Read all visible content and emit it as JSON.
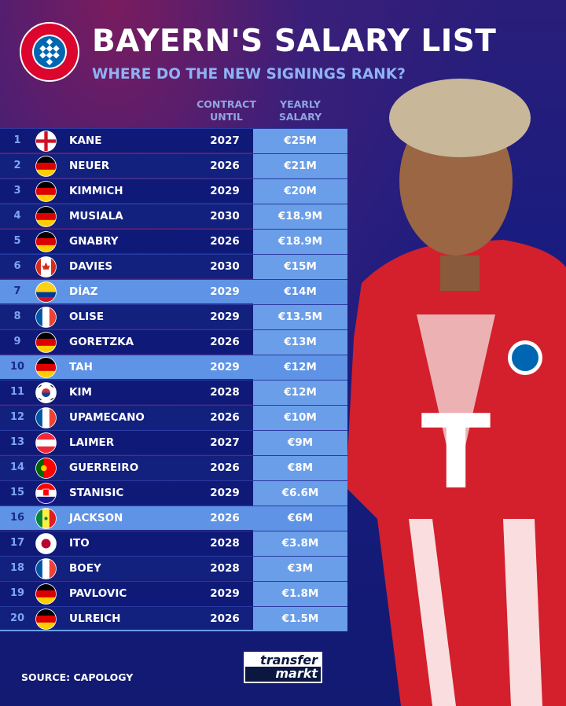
{
  "header": {
    "title": "BAYERN'S SALARY LIST",
    "subtitle": "WHERE DO THE NEW SIGNINGS RANK?",
    "logo_text": "FC BAYERN MÜNCHEN"
  },
  "columns": {
    "contract": "CONTRACT UNTIL",
    "salary": "YEARLY SALARY"
  },
  "colors": {
    "highlight": "#5f93e6",
    "salary_col": "#6a9ee8",
    "row_dark": "#0f1a78"
  },
  "rows": [
    {
      "rank": "1",
      "flag": "england",
      "name": "KANE",
      "contract": "2027",
      "salary": "€25M",
      "highlight": false
    },
    {
      "rank": "2",
      "flag": "germany",
      "name": "NEUER",
      "contract": "2026",
      "salary": "€21M",
      "highlight": false
    },
    {
      "rank": "3",
      "flag": "germany",
      "name": "KIMMICH",
      "contract": "2029",
      "salary": "€20M",
      "highlight": false
    },
    {
      "rank": "4",
      "flag": "germany",
      "name": "MUSIALA",
      "contract": "2030",
      "salary": "€18.9M",
      "highlight": false
    },
    {
      "rank": "5",
      "flag": "germany",
      "name": "GNABRY",
      "contract": "2026",
      "salary": "€18.9M",
      "highlight": false
    },
    {
      "rank": "6",
      "flag": "canada",
      "name": "DAVIES",
      "contract": "2030",
      "salary": "€15M",
      "highlight": false
    },
    {
      "rank": "7",
      "flag": "colombia",
      "name": "DÍAZ",
      "contract": "2029",
      "salary": "€14M",
      "highlight": true
    },
    {
      "rank": "8",
      "flag": "france",
      "name": "OLISE",
      "contract": "2029",
      "salary": "€13.5M",
      "highlight": false
    },
    {
      "rank": "9",
      "flag": "germany",
      "name": "GORETZKA",
      "contract": "2026",
      "salary": "€13M",
      "highlight": false
    },
    {
      "rank": "10",
      "flag": "germany",
      "name": "TAH",
      "contract": "2029",
      "salary": "€12M",
      "highlight": true
    },
    {
      "rank": "11",
      "flag": "south-korea",
      "name": "KIM",
      "contract": "2028",
      "salary": "€12M",
      "highlight": false
    },
    {
      "rank": "12",
      "flag": "france",
      "name": "UPAMECANO",
      "contract": "2026",
      "salary": "€10M",
      "highlight": false
    },
    {
      "rank": "13",
      "flag": "austria",
      "name": "LAIMER",
      "contract": "2027",
      "salary": "€9M",
      "highlight": false
    },
    {
      "rank": "14",
      "flag": "portugal",
      "name": "GUERREIRO",
      "contract": "2026",
      "salary": "€8M",
      "highlight": false
    },
    {
      "rank": "15",
      "flag": "croatia",
      "name": "STANISIC",
      "contract": "2029",
      "salary": "€6.6M",
      "highlight": false
    },
    {
      "rank": "16",
      "flag": "senegal",
      "name": "JACKSON",
      "contract": "2026",
      "salary": "€6M",
      "highlight": true
    },
    {
      "rank": "17",
      "flag": "japan",
      "name": "ITO",
      "contract": "2028",
      "salary": "€3.8M",
      "highlight": false
    },
    {
      "rank": "18",
      "flag": "france",
      "name": "BOEY",
      "contract": "2028",
      "salary": "€3M",
      "highlight": false
    },
    {
      "rank": "19",
      "flag": "germany",
      "name": "PAVLOVIC",
      "contract": "2029",
      "salary": "€1.8M",
      "highlight": false
    },
    {
      "rank": "20",
      "flag": "germany",
      "name": "ULREICH",
      "contract": "2026",
      "salary": "€1.5M",
      "highlight": false
    }
  ],
  "footer": {
    "source": "SOURCE: CAPOLOGY",
    "brand_line1": "transfer",
    "brand_line2": "markt"
  }
}
